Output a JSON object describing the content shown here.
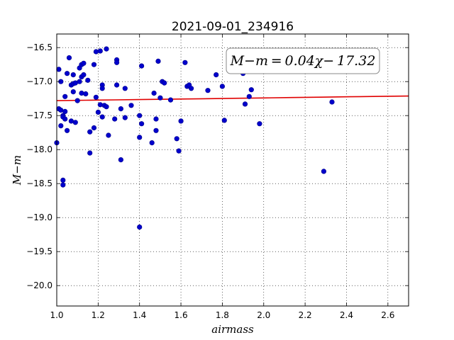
{
  "chart_data": {
    "type": "scatter",
    "title": "2021-09-01_234916",
    "xlabel": "airmass",
    "ylabel": "M−m",
    "xlim": [
      1.0,
      2.7
    ],
    "ylim": [
      -20.3,
      -16.3
    ],
    "x_ticks": [
      1.0,
      1.2,
      1.4,
      1.6,
      1.8,
      2.0,
      2.2,
      2.4,
      2.6
    ],
    "x_tick_labels": [
      "1.0",
      "1.2",
      "1.4",
      "1.6",
      "1.8",
      "2.0",
      "2.2",
      "2.4",
      "2.6"
    ],
    "y_ticks": [
      -16.5,
      -17.0,
      -17.5,
      -18.0,
      -18.5,
      -19.0,
      -19.5,
      -20.0
    ],
    "y_tick_labels": [
      "−16.5",
      "−17.0",
      "−17.5",
      "−18.0",
      "−18.5",
      "−19.0",
      "−19.5",
      "−20.0"
    ],
    "grid": true,
    "annotation": "M−m = 0.04χ− 17.32",
    "fit": {
      "slope": 0.04,
      "intercept": -17.32,
      "x_range": [
        1.0,
        2.7
      ]
    },
    "colors": {
      "points": "#0000cc",
      "fit": "#e00000"
    },
    "points": [
      [
        1.0,
        -17.9
      ],
      [
        1.01,
        -16.82
      ],
      [
        1.01,
        -17.4
      ],
      [
        1.02,
        -17.0
      ],
      [
        1.02,
        -17.65
      ],
      [
        1.02,
        -17.42
      ],
      [
        1.03,
        -17.5
      ],
      [
        1.03,
        -17.52
      ],
      [
        1.03,
        -18.45
      ],
      [
        1.03,
        -18.52
      ],
      [
        1.04,
        -17.22
      ],
      [
        1.04,
        -17.44
      ],
      [
        1.04,
        -17.55
      ],
      [
        1.05,
        -16.88
      ],
      [
        1.05,
        -17.72
      ],
      [
        1.06,
        -16.65
      ],
      [
        1.07,
        -17.05
      ],
      [
        1.07,
        -17.58
      ],
      [
        1.08,
        -16.9
      ],
      [
        1.08,
        -17.03
      ],
      [
        1.08,
        -17.15
      ],
      [
        1.09,
        -17.6
      ],
      [
        1.09,
        -17.02
      ],
      [
        1.1,
        -17.28
      ],
      [
        1.11,
        -16.8
      ],
      [
        1.11,
        -17.0
      ],
      [
        1.12,
        -16.75
      ],
      [
        1.12,
        -16.93
      ],
      [
        1.12,
        -17.17
      ],
      [
        1.13,
        -16.73
      ],
      [
        1.13,
        -16.9
      ],
      [
        1.14,
        -17.18
      ],
      [
        1.15,
        -16.98
      ],
      [
        1.16,
        -17.74
      ],
      [
        1.16,
        -18.05
      ],
      [
        1.18,
        -16.75
      ],
      [
        1.18,
        -17.68
      ],
      [
        1.19,
        -16.56
      ],
      [
        1.19,
        -17.23
      ],
      [
        1.2,
        -17.45
      ],
      [
        1.21,
        -16.55
      ],
      [
        1.21,
        -17.34
      ],
      [
        1.22,
        -17.05
      ],
      [
        1.22,
        -17.1
      ],
      [
        1.22,
        -17.52
      ],
      [
        1.23,
        -17.35
      ],
      [
        1.24,
        -17.37
      ],
      [
        1.24,
        -16.52
      ],
      [
        1.25,
        -17.79
      ],
      [
        1.28,
        -17.55
      ],
      [
        1.29,
        -16.68
      ],
      [
        1.29,
        -16.72
      ],
      [
        1.29,
        -17.05
      ],
      [
        1.31,
        -17.4
      ],
      [
        1.31,
        -18.15
      ],
      [
        1.33,
        -17.1
      ],
      [
        1.33,
        -17.53
      ],
      [
        1.36,
        -17.35
      ],
      [
        1.4,
        -17.5
      ],
      [
        1.4,
        -17.82
      ],
      [
        1.4,
        -19.14
      ],
      [
        1.41,
        -16.77
      ],
      [
        1.41,
        -17.62
      ],
      [
        1.46,
        -17.9
      ],
      [
        1.47,
        -17.17
      ],
      [
        1.48,
        -17.55
      ],
      [
        1.48,
        -17.72
      ],
      [
        1.49,
        -16.7
      ],
      [
        1.5,
        -17.24
      ],
      [
        1.51,
        -17.0
      ],
      [
        1.52,
        -17.02
      ],
      [
        1.55,
        -17.27
      ],
      [
        1.58,
        -17.84
      ],
      [
        1.59,
        -18.02
      ],
      [
        1.6,
        -17.58
      ],
      [
        1.62,
        -16.72
      ],
      [
        1.63,
        -17.07
      ],
      [
        1.64,
        -17.05
      ],
      [
        1.65,
        -17.1
      ],
      [
        1.73,
        -17.13
      ],
      [
        1.77,
        -16.9
      ],
      [
        1.8,
        -17.07
      ],
      [
        1.81,
        -17.57
      ],
      [
        1.9,
        -16.88
      ],
      [
        1.91,
        -17.33
      ],
      [
        1.93,
        -17.22
      ],
      [
        1.94,
        -17.12
      ],
      [
        1.98,
        -17.62
      ],
      [
        2.29,
        -18.32
      ],
      [
        2.33,
        -17.3
      ]
    ]
  }
}
